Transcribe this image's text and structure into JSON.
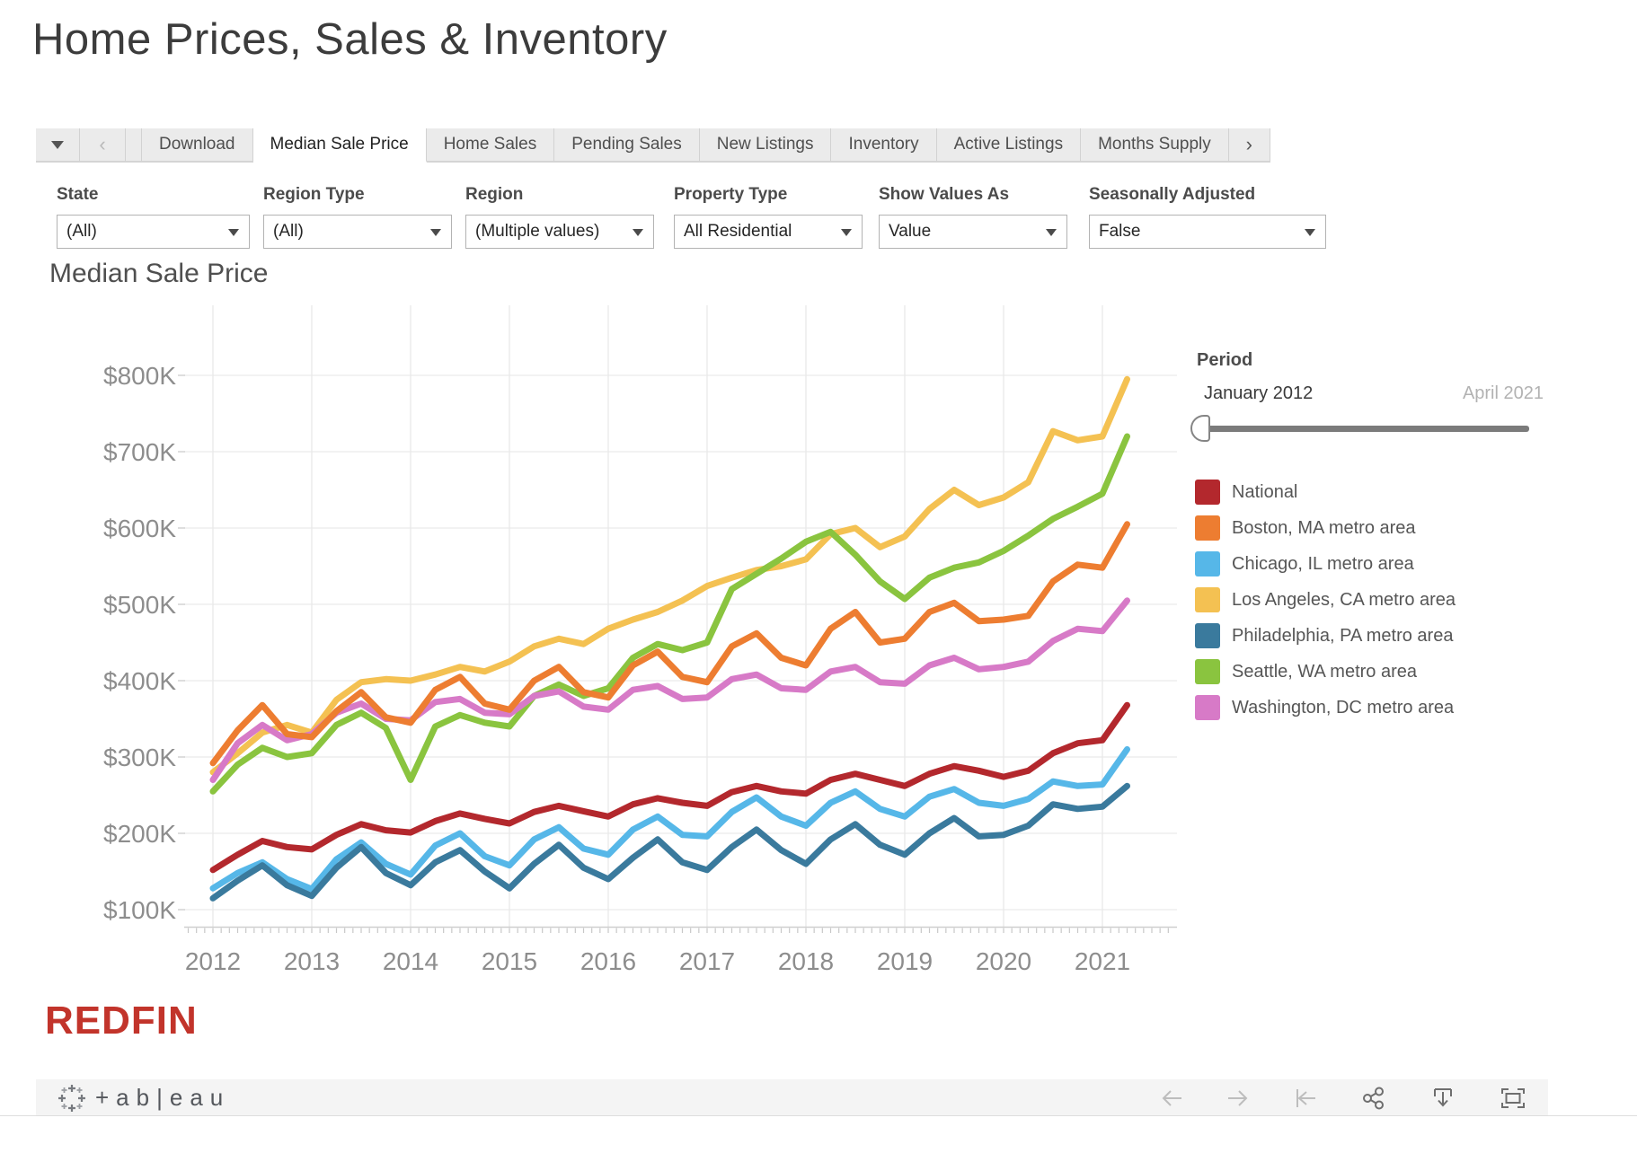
{
  "page": {
    "title": "Home Prices, Sales & Inventory"
  },
  "tabs": {
    "items": [
      "Download",
      "Median Sale Price",
      "Home Sales",
      "Pending Sales",
      "New Listings",
      "Inventory",
      "Active Listings",
      "Months Supply"
    ],
    "active_index": 1,
    "menu_icon": "caret-down",
    "back_icon": "chevron-left",
    "next_icon": "chevron-right",
    "back_glyph": "‹",
    "next_glyph": "›"
  },
  "filters": [
    {
      "label": "State",
      "value": "(All)"
    },
    {
      "label": "Region Type",
      "value": "(All)"
    },
    {
      "label": "Region",
      "value": "(Multiple values)"
    },
    {
      "label": "Property Type",
      "value": "All Residential"
    },
    {
      "label": "Show Values As",
      "value": "Value"
    },
    {
      "label": "Seasonally Adjusted",
      "value": "False"
    }
  ],
  "period": {
    "label": "Period",
    "start": "January 2012",
    "end": "April 2021"
  },
  "footer": {
    "brand": "REDFIN",
    "brand_color": "#c2342b",
    "tableau_wordmark": "+ab|eau",
    "icons": [
      "undo-arrow",
      "redo-arrow",
      "reset",
      "share",
      "download",
      "fullscreen"
    ]
  },
  "chart_data": {
    "type": "line",
    "title": "Median Sale Price",
    "x_unit": "months since January 2012 (quarterly samples, last point April 2021)",
    "months": [
      0,
      3,
      6,
      9,
      12,
      15,
      18,
      21,
      24,
      27,
      30,
      33,
      36,
      39,
      42,
      45,
      48,
      51,
      54,
      57,
      60,
      63,
      66,
      69,
      72,
      75,
      78,
      81,
      84,
      87,
      90,
      93,
      96,
      99,
      102,
      105,
      108,
      111
    ],
    "x_tick_labels": [
      "2012",
      "2013",
      "2014",
      "2015",
      "2016",
      "2017",
      "2018",
      "2019",
      "2020",
      "2021"
    ],
    "x_minor_ticks": "monthly",
    "y_ticks": [
      100,
      200,
      300,
      400,
      500,
      600,
      700,
      800
    ],
    "y_tick_format": "$%dK",
    "ylim_k": [
      86,
      890
    ],
    "grid": true,
    "legend_position": "right",
    "axis_text_color": "#8d8d8d",
    "grid_color": "#e9e9e9",
    "series": [
      {
        "name": "National",
        "color": "#b3282d",
        "values_k": [
          152,
          172,
          190,
          182,
          179,
          198,
          212,
          204,
          201,
          216,
          226,
          219,
          213,
          228,
          236,
          229,
          222,
          238,
          246,
          240,
          236,
          254,
          262,
          255,
          252,
          270,
          278,
          270,
          262,
          278,
          288,
          282,
          274,
          282,
          305,
          318,
          322,
          368
        ]
      },
      {
        "name": "Boston, MA metro area",
        "color": "#ed7d31",
        "values_k": [
          292,
          335,
          368,
          330,
          326,
          360,
          385,
          352,
          345,
          388,
          405,
          370,
          362,
          400,
          418,
          385,
          378,
          420,
          438,
          405,
          398,
          445,
          462,
          430,
          420,
          468,
          490,
          450,
          455,
          490,
          502,
          478,
          480,
          485,
          530,
          552,
          548,
          605
        ]
      },
      {
        "name": "Chicago, IL metro area",
        "color": "#56b7e8",
        "values_k": [
          128,
          148,
          162,
          140,
          127,
          166,
          188,
          160,
          146,
          184,
          200,
          170,
          158,
          192,
          208,
          180,
          172,
          205,
          222,
          198,
          196,
          228,
          247,
          222,
          210,
          240,
          255,
          232,
          222,
          248,
          258,
          240,
          236,
          245,
          268,
          262,
          264,
          310
        ]
      },
      {
        "name": "Los Angeles, CA metro area",
        "color": "#f4c152",
        "values_k": [
          280,
          305,
          332,
          342,
          332,
          375,
          398,
          402,
          400,
          408,
          418,
          412,
          425,
          445,
          455,
          448,
          468,
          480,
          490,
          505,
          524,
          535,
          545,
          550,
          559,
          592,
          600,
          575,
          589,
          625,
          650,
          630,
          640,
          660,
          727,
          715,
          720,
          795
        ]
      },
      {
        "name": "Philadelphia, PA metro area",
        "color": "#3a7a9d",
        "values_k": [
          115,
          138,
          158,
          132,
          118,
          155,
          182,
          148,
          132,
          162,
          178,
          150,
          128,
          160,
          185,
          155,
          140,
          168,
          192,
          162,
          152,
          182,
          205,
          178,
          160,
          192,
          212,
          185,
          172,
          200,
          220,
          196,
          198,
          210,
          238,
          232,
          235,
          262
        ]
      },
      {
        "name": "Seattle, WA metro area",
        "color": "#8ac43f",
        "values_k": [
          255,
          290,
          312,
          300,
          305,
          342,
          358,
          338,
          270,
          340,
          355,
          345,
          340,
          380,
          395,
          380,
          390,
          430,
          448,
          440,
          450,
          520,
          540,
          560,
          582,
          595,
          565,
          530,
          507,
          535,
          548,
          555,
          570,
          590,
          612,
          628,
          645,
          720
        ]
      },
      {
        "name": "Washington, DC metro area",
        "color": "#d77ac7",
        "values_k": [
          270,
          318,
          342,
          322,
          330,
          358,
          370,
          350,
          348,
          372,
          376,
          358,
          356,
          380,
          386,
          366,
          362,
          388,
          393,
          376,
          378,
          402,
          408,
          390,
          388,
          412,
          418,
          398,
          396,
          420,
          430,
          415,
          418,
          425,
          452,
          468,
          465,
          505
        ]
      }
    ]
  }
}
